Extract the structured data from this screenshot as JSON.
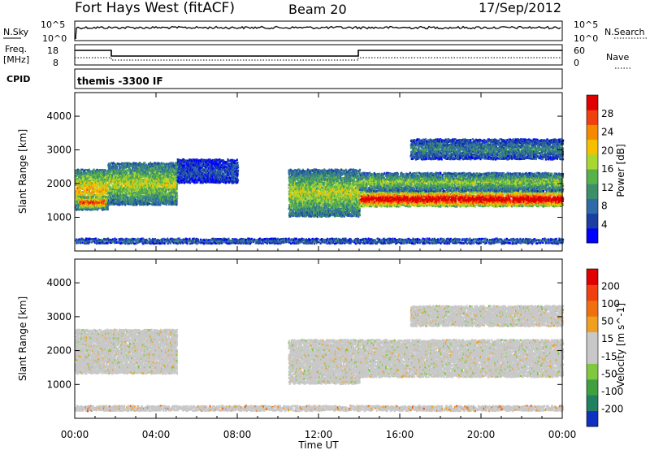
{
  "header": {
    "station": "Fort Hays West (fitACF)",
    "beam": "Beam 20",
    "date": "17/Sep/2012"
  },
  "noise_panel": {
    "left_label": "N.Sky",
    "right_label": "N.Search",
    "left_ticks": [
      "10^5",
      "10^0"
    ],
    "right_ticks": [
      "10^5",
      "10^0"
    ]
  },
  "freq_panel": {
    "left_label_1": "Freq.",
    "left_label_2": "[MHz]",
    "right_label": "Nave",
    "left_ticks": [
      "18",
      "8"
    ],
    "right_ticks": [
      "60",
      "0"
    ],
    "cpid_label": "CPID",
    "cpid_text": "themis -3300 IF"
  },
  "chart_data": [
    {
      "type": "heatmap",
      "name": "power",
      "ylabel": "Slant Range [km]",
      "yticks": [
        "4000",
        "3000",
        "2000",
        "1000"
      ],
      "xticks": [
        "00:00",
        "04:00",
        "08:00",
        "12:00",
        "16:00",
        "20:00",
        "00:00"
      ],
      "xlabel": "Time UT",
      "colorbar_label": "Power [dB]",
      "colorbar_ticks": [
        "28",
        "24",
        "20",
        "16",
        "12",
        "8",
        "4"
      ],
      "colorbar_colors": [
        "#0000ff",
        "#1a3fa0",
        "#2f6aa8",
        "#3d8f6a",
        "#58b14a",
        "#a8d830",
        "#f5c000",
        "#f58a00",
        "#f04010",
        "#e00000"
      ],
      "ylim": [
        0,
        4700
      ],
      "xlim_hours": [
        0,
        24
      ],
      "bands": [
        {
          "t0": 0.0,
          "t1": 1.6,
          "r0": 1200,
          "r1": 2400,
          "level": 0.55
        },
        {
          "t0": 0.2,
          "t1": 1.5,
          "r0": 1250,
          "r1": 1600,
          "level": 0.7
        },
        {
          "t0": 1.6,
          "t1": 5.0,
          "r0": 1350,
          "r1": 2600,
          "level": 0.45
        },
        {
          "t0": 5.0,
          "t1": 8.0,
          "r0": 2000,
          "r1": 2700,
          "level": 0.15
        },
        {
          "t0": 10.5,
          "t1": 14.0,
          "r0": 1000,
          "r1": 2400,
          "level": 0.45
        },
        {
          "t0": 14.0,
          "t1": 24.0,
          "r0": 1300,
          "r1": 1750,
          "level": 0.85
        },
        {
          "t0": 14.0,
          "t1": 24.0,
          "r0": 1750,
          "r1": 2300,
          "level": 0.4
        },
        {
          "t0": 16.5,
          "t1": 24.0,
          "r0": 2700,
          "r1": 3300,
          "level": 0.25
        },
        {
          "t0": 0.0,
          "t1": 24.0,
          "r0": 200,
          "r1": 350,
          "level": 0.2
        }
      ]
    },
    {
      "type": "heatmap",
      "name": "velocity",
      "ylabel": "Slant Range [km]",
      "yticks": [
        "4000",
        "3000",
        "2000",
        "1000"
      ],
      "xticks": [
        "00:00",
        "04:00",
        "08:00",
        "12:00",
        "16:00",
        "20:00",
        "00:00"
      ],
      "xlabel": "Time UT",
      "colorbar_label": "Velocity [m s^-1]",
      "colorbar_ticks": [
        "200",
        "100",
        "50",
        "15",
        "-15",
        "-50",
        "-100",
        "-200"
      ],
      "colorbar_colors": [
        "#1030c0",
        "#208060",
        "#40a040",
        "#80c840",
        "#c8c8c8",
        "#c8c8c8",
        "#f0a020",
        "#f07010",
        "#f04010",
        "#e00000"
      ],
      "ylim": [
        0,
        4700
      ],
      "xlim_hours": [
        0,
        24
      ],
      "bands": [
        {
          "t0": 0.0,
          "t1": 5.0,
          "r0": 1300,
          "r1": 2600,
          "level": 0.5
        },
        {
          "t0": 10.5,
          "t1": 14.0,
          "r0": 1000,
          "r1": 2300,
          "level": 0.5
        },
        {
          "t0": 14.0,
          "t1": 24.0,
          "r0": 1200,
          "r1": 2300,
          "level": 0.5
        },
        {
          "t0": 16.5,
          "t1": 24.0,
          "r0": 2700,
          "r1": 3300,
          "level": 0.5
        },
        {
          "t0": 0.0,
          "t1": 24.0,
          "r0": 200,
          "r1": 350,
          "level": 0.65
        }
      ]
    }
  ]
}
